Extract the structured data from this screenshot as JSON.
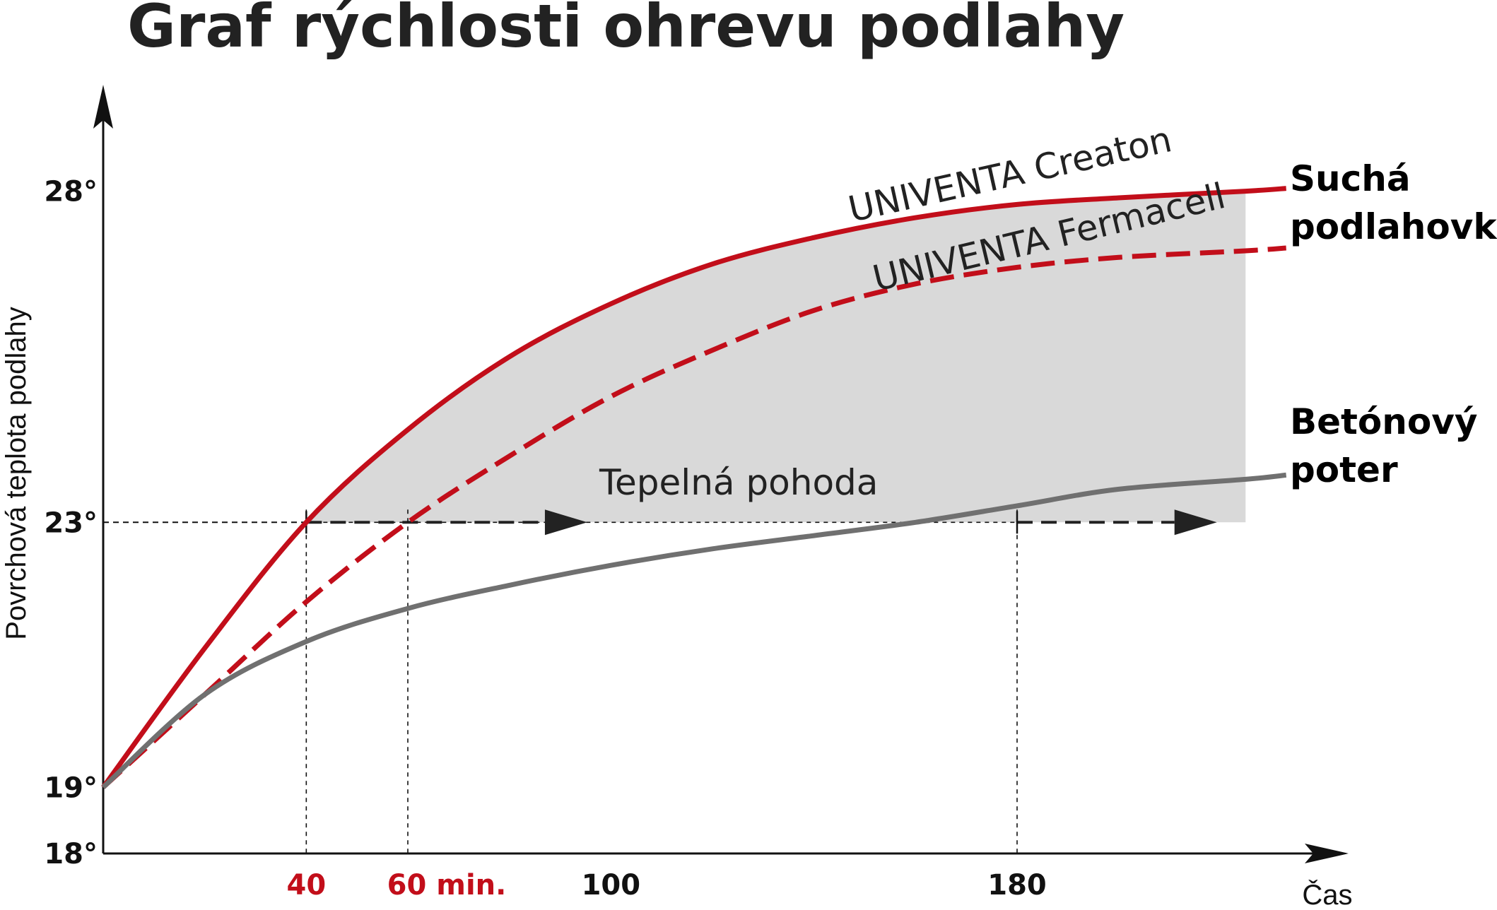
{
  "colors": {
    "red": "#c20e1a",
    "gray": "#707070",
    "dark": "#222222",
    "comfort_fill": "#d9d9d9"
  },
  "chart_data": {
    "type": "line",
    "title": "Graf rýchlosti ohrevu podlahy",
    "ylabel": "Povrchová teplota podlahy",
    "xlabel": "Čas",
    "ylim": [
      18,
      29.5
    ],
    "xlim": [
      0,
      240
    ],
    "y_ticks": [
      "18°",
      "19°",
      "23°",
      "28°"
    ],
    "y_tick_values": [
      18,
      19,
      23,
      28
    ],
    "x_ticks": [
      {
        "label": "40",
        "value": 40,
        "color": "#c20e1a"
      },
      {
        "label": "60 min.",
        "value": 60,
        "color": "#c20e1a"
      },
      {
        "label": "100",
        "value": 100,
        "color": "#111111"
      },
      {
        "label": "180",
        "value": 180,
        "color": "#111111"
      }
    ],
    "comfort_zone": {
      "label": "Tepelná pohoda",
      "threshold": 23,
      "x_end": 225
    },
    "series": [
      {
        "name": "UNIVENTA Creaton",
        "style": "solid",
        "color": "#c20e1a",
        "x": [
          0,
          20,
          40,
          60,
          80,
          100,
          120,
          140,
          160,
          180,
          200,
          225
        ],
        "y": [
          19.0,
          21.1,
          23.0,
          24.4,
          25.5,
          26.3,
          26.9,
          27.3,
          27.6,
          27.8,
          27.9,
          28.0
        ]
      },
      {
        "name": "UNIVENTA Fermacell",
        "style": "dashed",
        "color": "#c20e1a",
        "x": [
          0,
          20,
          40,
          60,
          80,
          100,
          120,
          140,
          160,
          180,
          200,
          225
        ],
        "y": [
          19.0,
          20.4,
          21.8,
          23.0,
          24.0,
          24.9,
          25.6,
          26.2,
          26.6,
          26.85,
          27.0,
          27.1
        ]
      },
      {
        "name": "Betónový poter",
        "style": "solid",
        "color": "#707070",
        "x": [
          0,
          20,
          40,
          60,
          80,
          100,
          120,
          140,
          160,
          180,
          200,
          225
        ],
        "y": [
          19.0,
          20.4,
          21.2,
          21.7,
          22.05,
          22.35,
          22.6,
          22.8,
          23.0,
          23.25,
          23.5,
          23.65
        ]
      }
    ],
    "legend": [
      {
        "lines": [
          "Suchá",
          "podlahovka"
        ],
        "color": "#c20e1a"
      },
      {
        "lines": [
          "Betónový",
          "poter"
        ],
        "color": "#707070"
      }
    ]
  }
}
